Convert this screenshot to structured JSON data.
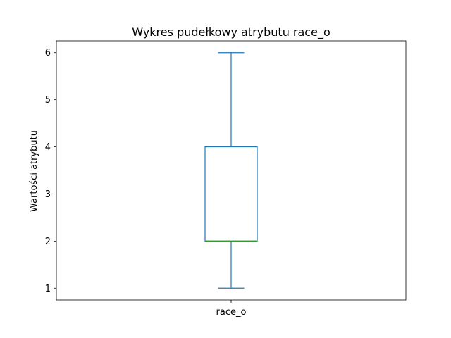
{
  "chart_data": {
    "type": "box",
    "title": "Wykres pudełkowy atrybutu race_o",
    "xlabel": "",
    "ylabel": "Wartości atrybutu",
    "categories": [
      "race_o"
    ],
    "boxes": [
      {
        "name": "race_o",
        "whisker_low": 1,
        "q1": 2,
        "median": 2,
        "q3": 4,
        "whisker_high": 6
      }
    ],
    "ylim": [
      0.75,
      6.25
    ],
    "yticks": [
      1,
      2,
      3,
      4,
      5,
      6
    ],
    "grid": false,
    "colors": {
      "box": "#1f77b4",
      "median": "#2ca02c"
    }
  }
}
